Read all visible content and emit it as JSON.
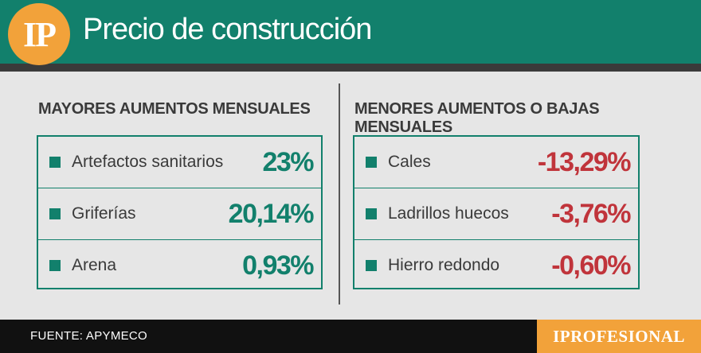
{
  "header": {
    "logo_text": "IP",
    "title": "Precio de construcción"
  },
  "left": {
    "heading": "MAYORES AUMENTOS MENSUALES",
    "items": [
      {
        "label": "Artefactos sanitarios",
        "value": "23%"
      },
      {
        "label": "Griferías",
        "value": "20,14%"
      },
      {
        "label": "Arena",
        "value": "0,93%"
      }
    ]
  },
  "right": {
    "heading": "MENORES AUMENTOS O BAJAS MENSUALES",
    "items": [
      {
        "label": "Cales",
        "value": "-13,29%"
      },
      {
        "label": "Ladrillos huecos",
        "value": "-3,76%"
      },
      {
        "label": "Hierro redondo",
        "value": "-0,60%"
      }
    ]
  },
  "footer": {
    "source": "FUENTE: APYMECO",
    "brand": "IPROFESIONAL"
  },
  "colors": {
    "brand_green": "#12806c",
    "brand_orange": "#f2a23a",
    "increase": "#12806c",
    "decrease": "#c0343b"
  }
}
